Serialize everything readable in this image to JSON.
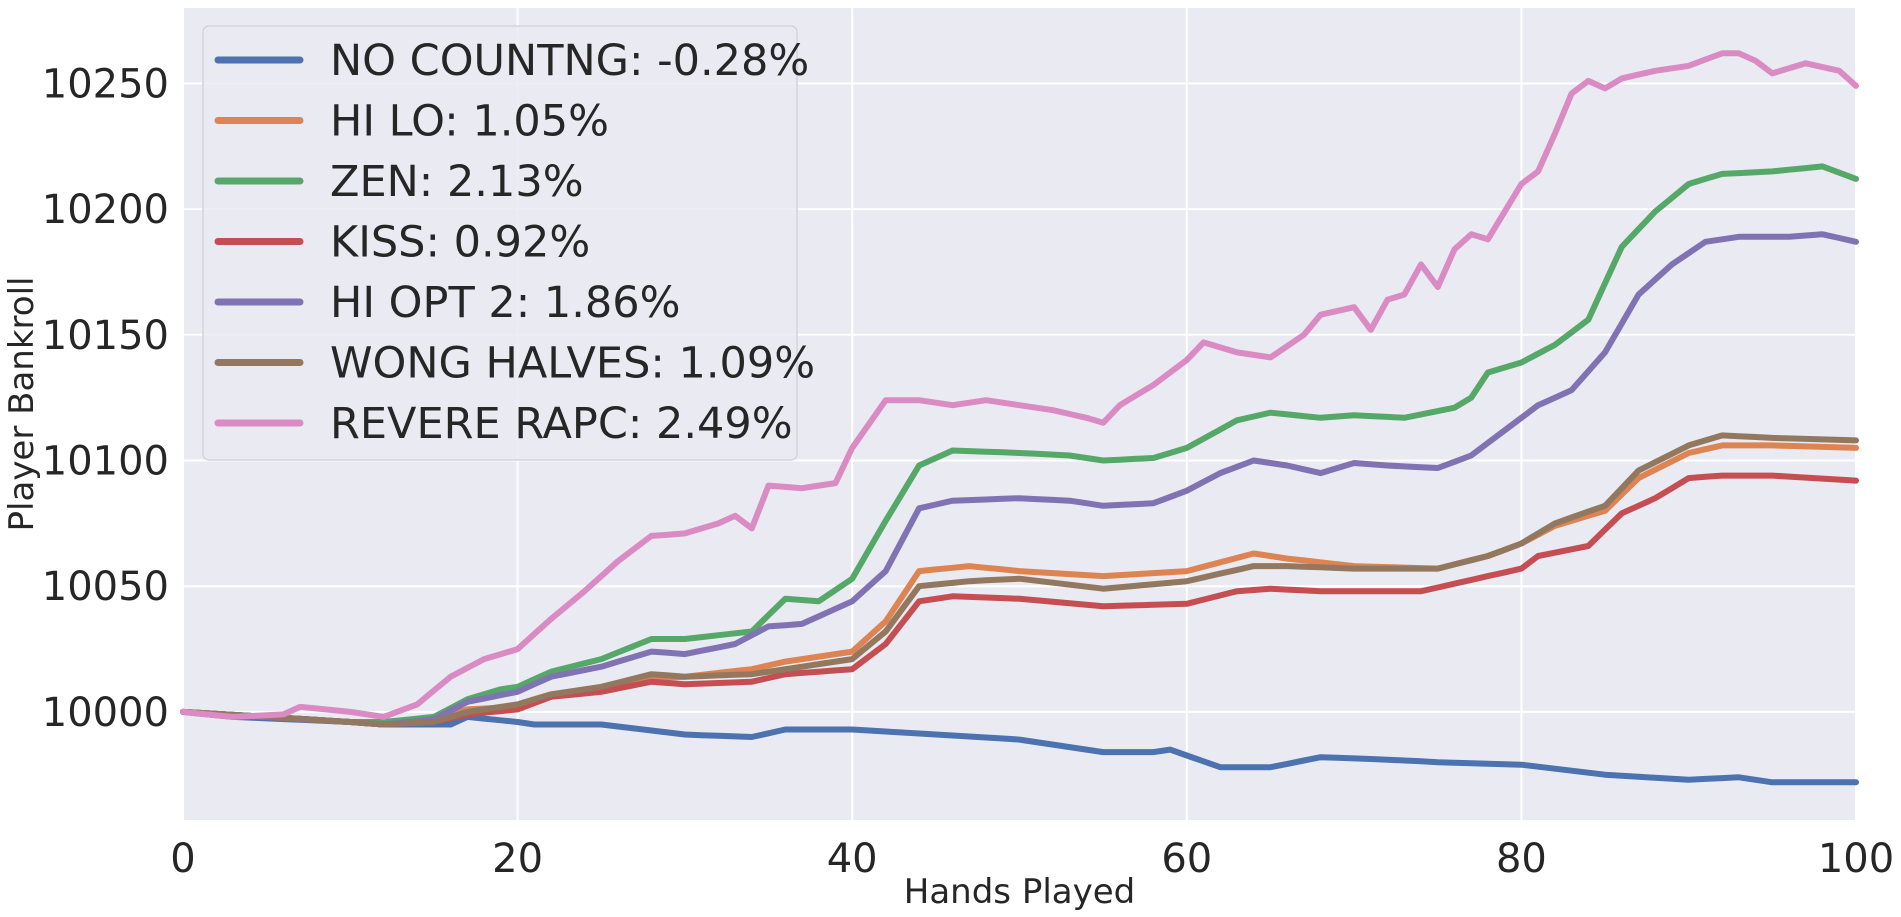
{
  "chart_data": {
    "type": "line",
    "title": "",
    "xlabel": "Hands Played",
    "ylabel": "Player Bankroll",
    "xlim": [
      0,
      100
    ],
    "ylim": [
      9957,
      10280
    ],
    "xticks": [
      0,
      20,
      40,
      60,
      80,
      100
    ],
    "yticks": [
      10000,
      10050,
      10100,
      10150,
      10200,
      10250
    ],
    "grid": true,
    "legend_position": "top-left",
    "background_color": "#EAEAF2",
    "series": [
      {
        "name": "NO COUNTNG: -0.28%",
        "color": "#4C72B0",
        "keypoints": [
          [
            0,
            10000
          ],
          [
            3,
            9998
          ],
          [
            10,
            9996
          ],
          [
            12,
            9995
          ],
          [
            16,
            9995
          ],
          [
            17,
            9998
          ],
          [
            20,
            9996
          ],
          [
            21,
            9995
          ],
          [
            25,
            9995
          ],
          [
            30,
            9991
          ],
          [
            34,
            9990
          ],
          [
            36,
            9993
          ],
          [
            40,
            9993
          ],
          [
            45,
            9991
          ],
          [
            50,
            9989
          ],
          [
            55,
            9984
          ],
          [
            58,
            9984
          ],
          [
            59,
            9985
          ],
          [
            62,
            9978
          ],
          [
            65,
            9978
          ],
          [
            68,
            9982
          ],
          [
            72,
            9981
          ],
          [
            75,
            9980
          ],
          [
            80,
            9979
          ],
          [
            85,
            9975
          ],
          [
            90,
            9973
          ],
          [
            93,
            9974
          ],
          [
            95,
            9972
          ],
          [
            100,
            9972
          ]
        ]
      },
      {
        "name": "HI LO: 1.05%",
        "color": "#DD8452",
        "keypoints": [
          [
            0,
            10000
          ],
          [
            5,
            9998
          ],
          [
            10,
            9996
          ],
          [
            12,
            9995
          ],
          [
            15,
            9997
          ],
          [
            17,
            10001
          ],
          [
            20,
            10002
          ],
          [
            22,
            10006
          ],
          [
            25,
            10009
          ],
          [
            27,
            10013
          ],
          [
            30,
            10014
          ],
          [
            34,
            10017
          ],
          [
            36,
            10020
          ],
          [
            40,
            10024
          ],
          [
            42,
            10036
          ],
          [
            44,
            10056
          ],
          [
            47,
            10058
          ],
          [
            50,
            10056
          ],
          [
            55,
            10054
          ],
          [
            60,
            10056
          ],
          [
            64,
            10063
          ],
          [
            66,
            10061
          ],
          [
            70,
            10058
          ],
          [
            75,
            10057
          ],
          [
            78,
            10062
          ],
          [
            80,
            10067
          ],
          [
            82,
            10074
          ],
          [
            85,
            10080
          ],
          [
            87,
            10093
          ],
          [
            90,
            10103
          ],
          [
            92,
            10106
          ],
          [
            95,
            10106
          ],
          [
            100,
            10105
          ]
        ]
      },
      {
        "name": "ZEN: 2.13%",
        "color": "#55A868",
        "keypoints": [
          [
            0,
            10000
          ],
          [
            5,
            9998
          ],
          [
            10,
            9996
          ],
          [
            12,
            9996
          ],
          [
            15,
            9998
          ],
          [
            17,
            10005
          ],
          [
            19,
            10009
          ],
          [
            20,
            10010
          ],
          [
            22,
            10016
          ],
          [
            25,
            10021
          ],
          [
            28,
            10029
          ],
          [
            30,
            10029
          ],
          [
            34,
            10032
          ],
          [
            36,
            10045
          ],
          [
            38,
            10044
          ],
          [
            40,
            10053
          ],
          [
            42,
            10076
          ],
          [
            44,
            10098
          ],
          [
            46,
            10104
          ],
          [
            50,
            10103
          ],
          [
            53,
            10102
          ],
          [
            55,
            10100
          ],
          [
            58,
            10101
          ],
          [
            60,
            10105
          ],
          [
            63,
            10116
          ],
          [
            65,
            10119
          ],
          [
            68,
            10117
          ],
          [
            70,
            10118
          ],
          [
            73,
            10117
          ],
          [
            76,
            10121
          ],
          [
            77,
            10125
          ],
          [
            78,
            10135
          ],
          [
            80,
            10139
          ],
          [
            82,
            10146
          ],
          [
            84,
            10156
          ],
          [
            86,
            10185
          ],
          [
            88,
            10199
          ],
          [
            90,
            10210
          ],
          [
            92,
            10214
          ],
          [
            95,
            10215
          ],
          [
            98,
            10217
          ],
          [
            100,
            10212
          ]
        ]
      },
      {
        "name": "KISS: 0.92%",
        "color": "#C44E52",
        "keypoints": [
          [
            0,
            10000
          ],
          [
            5,
            9998
          ],
          [
            10,
            9996
          ],
          [
            12,
            9995
          ],
          [
            15,
            9996
          ],
          [
            17,
            9999
          ],
          [
            20,
            10001
          ],
          [
            22,
            10006
          ],
          [
            25,
            10008
          ],
          [
            28,
            10012
          ],
          [
            30,
            10011
          ],
          [
            34,
            10012
          ],
          [
            36,
            10015
          ],
          [
            40,
            10017
          ],
          [
            42,
            10027
          ],
          [
            44,
            10044
          ],
          [
            46,
            10046
          ],
          [
            50,
            10045
          ],
          [
            55,
            10042
          ],
          [
            60,
            10043
          ],
          [
            63,
            10048
          ],
          [
            65,
            10049
          ],
          [
            68,
            10048
          ],
          [
            70,
            10048
          ],
          [
            74,
            10048
          ],
          [
            76,
            10051
          ],
          [
            78,
            10054
          ],
          [
            80,
            10057
          ],
          [
            81,
            10062
          ],
          [
            84,
            10066
          ],
          [
            86,
            10079
          ],
          [
            88,
            10085
          ],
          [
            90,
            10093
          ],
          [
            92,
            10094
          ],
          [
            95,
            10094
          ],
          [
            100,
            10092
          ]
        ]
      },
      {
        "name": "HI OPT 2: 1.86%",
        "color": "#8172B3",
        "keypoints": [
          [
            0,
            10000
          ],
          [
            5,
            9998
          ],
          [
            10,
            9996
          ],
          [
            12,
            9995
          ],
          [
            15,
            9997
          ],
          [
            17,
            10004
          ],
          [
            20,
            10008
          ],
          [
            22,
            10014
          ],
          [
            25,
            10018
          ],
          [
            28,
            10024
          ],
          [
            30,
            10023
          ],
          [
            33,
            10027
          ],
          [
            35,
            10034
          ],
          [
            37,
            10035
          ],
          [
            40,
            10044
          ],
          [
            42,
            10056
          ],
          [
            44,
            10081
          ],
          [
            46,
            10084
          ],
          [
            50,
            10085
          ],
          [
            53,
            10084
          ],
          [
            55,
            10082
          ],
          [
            58,
            10083
          ],
          [
            60,
            10088
          ],
          [
            62,
            10095
          ],
          [
            64,
            10100
          ],
          [
            66,
            10098
          ],
          [
            68,
            10095
          ],
          [
            70,
            10099
          ],
          [
            72,
            10098
          ],
          [
            75,
            10097
          ],
          [
            77,
            10102
          ],
          [
            79,
            10112
          ],
          [
            81,
            10122
          ],
          [
            83,
            10128
          ],
          [
            85,
            10143
          ],
          [
            87,
            10166
          ],
          [
            89,
            10178
          ],
          [
            91,
            10187
          ],
          [
            93,
            10189
          ],
          [
            96,
            10189
          ],
          [
            98,
            10190
          ],
          [
            100,
            10187
          ]
        ]
      },
      {
        "name": "WONG HALVES: 1.09%",
        "color": "#937860",
        "keypoints": [
          [
            0,
            10000
          ],
          [
            5,
            9998
          ],
          [
            10,
            9996
          ],
          [
            12,
            9995
          ],
          [
            15,
            9996
          ],
          [
            17,
            10000
          ],
          [
            20,
            10003
          ],
          [
            22,
            10007
          ],
          [
            25,
            10010
          ],
          [
            28,
            10015
          ],
          [
            30,
            10014
          ],
          [
            34,
            10015
          ],
          [
            36,
            10017
          ],
          [
            40,
            10021
          ],
          [
            42,
            10032
          ],
          [
            44,
            10050
          ],
          [
            47,
            10052
          ],
          [
            50,
            10053
          ],
          [
            55,
            10049
          ],
          [
            60,
            10052
          ],
          [
            64,
            10058
          ],
          [
            66,
            10058
          ],
          [
            70,
            10057
          ],
          [
            75,
            10057
          ],
          [
            78,
            10062
          ],
          [
            80,
            10067
          ],
          [
            82,
            10075
          ],
          [
            85,
            10082
          ],
          [
            87,
            10096
          ],
          [
            90,
            10106
          ],
          [
            92,
            10110
          ],
          [
            95,
            10109
          ],
          [
            100,
            10108
          ]
        ]
      },
      {
        "name": "REVERE RAPC: 2.49%",
        "color": "#DA8BC3",
        "keypoints": [
          [
            0,
            10000
          ],
          [
            3,
            9998
          ],
          [
            6,
            9999
          ],
          [
            7,
            10002
          ],
          [
            10,
            10000
          ],
          [
            12,
            9998
          ],
          [
            14,
            10003
          ],
          [
            16,
            10014
          ],
          [
            18,
            10021
          ],
          [
            20,
            10025
          ],
          [
            22,
            10037
          ],
          [
            24,
            10048
          ],
          [
            26,
            10060
          ],
          [
            28,
            10070
          ],
          [
            30,
            10071
          ],
          [
            32,
            10075
          ],
          [
            33,
            10078
          ],
          [
            34,
            10073
          ],
          [
            35,
            10090
          ],
          [
            37,
            10089
          ],
          [
            39,
            10091
          ],
          [
            40,
            10105
          ],
          [
            42,
            10124
          ],
          [
            44,
            10124
          ],
          [
            46,
            10122
          ],
          [
            48,
            10124
          ],
          [
            50,
            10122
          ],
          [
            52,
            10120
          ],
          [
            54,
            10117
          ],
          [
            55,
            10115
          ],
          [
            56,
            10122
          ],
          [
            58,
            10130
          ],
          [
            60,
            10140
          ],
          [
            61,
            10147
          ],
          [
            63,
            10143
          ],
          [
            65,
            10141
          ],
          [
            67,
            10150
          ],
          [
            68,
            10158
          ],
          [
            70,
            10161
          ],
          [
            71,
            10152
          ],
          [
            72,
            10164
          ],
          [
            73,
            10166
          ],
          [
            74,
            10178
          ],
          [
            75,
            10169
          ],
          [
            76,
            10184
          ],
          [
            77,
            10190
          ],
          [
            78,
            10188
          ],
          [
            80,
            10210
          ],
          [
            81,
            10215
          ],
          [
            82,
            10230
          ],
          [
            83,
            10246
          ],
          [
            84,
            10251
          ],
          [
            85,
            10248
          ],
          [
            86,
            10252
          ],
          [
            88,
            10255
          ],
          [
            90,
            10257
          ],
          [
            92,
            10262
          ],
          [
            93,
            10262
          ],
          [
            94,
            10259
          ],
          [
            95,
            10254
          ],
          [
            97,
            10258
          ],
          [
            99,
            10255
          ],
          [
            100,
            10249
          ]
        ]
      }
    ]
  }
}
